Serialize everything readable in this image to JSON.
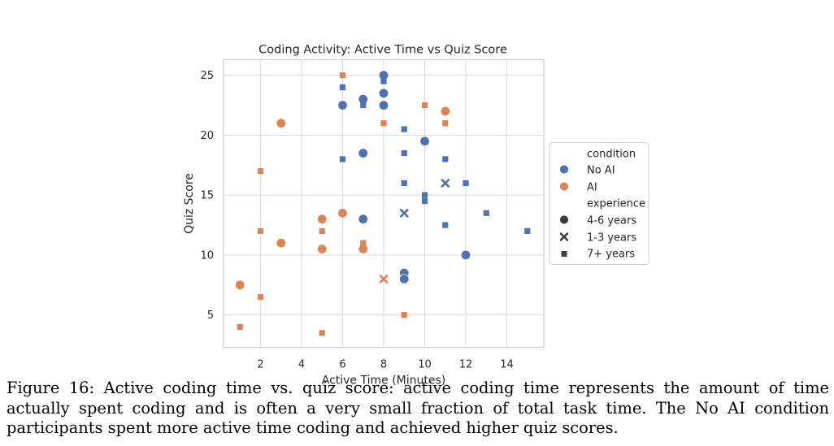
{
  "caption": "Figure 16: Active coding time vs. quiz score: active coding time represents the amount of time actually spent coding and is often a very small fraction of total task time. The No AI condition participants spent more active time coding and achieved higher quiz scores.",
  "chart_data": {
    "type": "scatter",
    "title": "Coding Activity: Active Time vs Quiz Score",
    "xlabel": "Active Time (Minutes)",
    "ylabel": "Quiz Score",
    "xlim": [
      0.2,
      15.8
    ],
    "ylim": [
      2.3,
      26.3
    ],
    "xticks": [
      2,
      4,
      6,
      8,
      10,
      12,
      14
    ],
    "yticks": [
      5,
      10,
      15,
      20,
      25
    ],
    "grid": true,
    "colors": {
      "No AI": "#4c72b0",
      "AI": "#dd8452"
    },
    "legend": {
      "placement": "outside right",
      "hue_title": "condition",
      "hue_entries": [
        "No AI",
        "AI"
      ],
      "style_title": "experience",
      "style_entries": [
        "4-6 years",
        "1-3 years",
        "7+ years"
      ]
    },
    "points": [
      {
        "x": 8,
        "y": 25,
        "condition": "No AI",
        "experience": "4-6 years"
      },
      {
        "x": 7,
        "y": 23,
        "condition": "No AI",
        "experience": "4-6 years"
      },
      {
        "x": 8,
        "y": 23.5,
        "condition": "No AI",
        "experience": "4-6 years"
      },
      {
        "x": 6,
        "y": 22.5,
        "condition": "No AI",
        "experience": "4-6 years"
      },
      {
        "x": 8,
        "y": 22.5,
        "condition": "No AI",
        "experience": "4-6 years"
      },
      {
        "x": 7,
        "y": 18.5,
        "condition": "No AI",
        "experience": "4-6 years"
      },
      {
        "x": 10,
        "y": 19.5,
        "condition": "No AI",
        "experience": "4-6 years"
      },
      {
        "x": 7,
        "y": 13,
        "condition": "No AI",
        "experience": "4-6 years"
      },
      {
        "x": 12,
        "y": 10,
        "condition": "No AI",
        "experience": "4-6 years"
      },
      {
        "x": 9,
        "y": 8.5,
        "condition": "No AI",
        "experience": "4-6 years"
      },
      {
        "x": 9,
        "y": 8,
        "condition": "No AI",
        "experience": "4-6 years"
      },
      {
        "x": 11,
        "y": 16,
        "condition": "No AI",
        "experience": "1-3 years"
      },
      {
        "x": 9,
        "y": 13.5,
        "condition": "No AI",
        "experience": "1-3 years"
      },
      {
        "x": 8,
        "y": 24.5,
        "condition": "No AI",
        "experience": "7+ years"
      },
      {
        "x": 6,
        "y": 24,
        "condition": "No AI",
        "experience": "7+ years"
      },
      {
        "x": 7,
        "y": 22.5,
        "condition": "No AI",
        "experience": "7+ years"
      },
      {
        "x": 9,
        "y": 20.5,
        "condition": "No AI",
        "experience": "7+ years"
      },
      {
        "x": 9,
        "y": 18.5,
        "condition": "No AI",
        "experience": "7+ years"
      },
      {
        "x": 6,
        "y": 18,
        "condition": "No AI",
        "experience": "7+ years"
      },
      {
        "x": 11,
        "y": 18,
        "condition": "No AI",
        "experience": "7+ years"
      },
      {
        "x": 9,
        "y": 16,
        "condition": "No AI",
        "experience": "7+ years"
      },
      {
        "x": 12,
        "y": 16,
        "condition": "No AI",
        "experience": "7+ years"
      },
      {
        "x": 10,
        "y": 15,
        "condition": "No AI",
        "experience": "7+ years"
      },
      {
        "x": 10,
        "y": 14.5,
        "condition": "No AI",
        "experience": "7+ years"
      },
      {
        "x": 13,
        "y": 13.5,
        "condition": "No AI",
        "experience": "7+ years"
      },
      {
        "x": 11,
        "y": 12.5,
        "condition": "No AI",
        "experience": "7+ years"
      },
      {
        "x": 15,
        "y": 12,
        "condition": "No AI",
        "experience": "7+ years"
      },
      {
        "x": 7,
        "y": 13,
        "condition": "No AI",
        "experience": "7+ years"
      },
      {
        "x": 11,
        "y": 22,
        "condition": "AI",
        "experience": "4-6 years"
      },
      {
        "x": 3,
        "y": 21,
        "condition": "AI",
        "experience": "4-6 years"
      },
      {
        "x": 6,
        "y": 13.5,
        "condition": "AI",
        "experience": "4-6 years"
      },
      {
        "x": 5,
        "y": 13,
        "condition": "AI",
        "experience": "4-6 years"
      },
      {
        "x": 3,
        "y": 11,
        "condition": "AI",
        "experience": "4-6 years"
      },
      {
        "x": 5,
        "y": 10.5,
        "condition": "AI",
        "experience": "4-6 years"
      },
      {
        "x": 7,
        "y": 10.5,
        "condition": "AI",
        "experience": "4-6 years"
      },
      {
        "x": 1,
        "y": 7.5,
        "condition": "AI",
        "experience": "4-6 years"
      },
      {
        "x": 8,
        "y": 8,
        "condition": "AI",
        "experience": "1-3 years"
      },
      {
        "x": 6,
        "y": 25,
        "condition": "AI",
        "experience": "7+ years"
      },
      {
        "x": 10,
        "y": 22.5,
        "condition": "AI",
        "experience": "7+ years"
      },
      {
        "x": 8,
        "y": 21,
        "condition": "AI",
        "experience": "7+ years"
      },
      {
        "x": 11,
        "y": 21,
        "condition": "AI",
        "experience": "7+ years"
      },
      {
        "x": 2,
        "y": 17,
        "condition": "AI",
        "experience": "7+ years"
      },
      {
        "x": 2,
        "y": 12,
        "condition": "AI",
        "experience": "7+ years"
      },
      {
        "x": 5,
        "y": 12,
        "condition": "AI",
        "experience": "7+ years"
      },
      {
        "x": 7,
        "y": 11,
        "condition": "AI",
        "experience": "7+ years"
      },
      {
        "x": 2,
        "y": 6.5,
        "condition": "AI",
        "experience": "7+ years"
      },
      {
        "x": 1,
        "y": 4,
        "condition": "AI",
        "experience": "7+ years"
      },
      {
        "x": 5,
        "y": 3.5,
        "condition": "AI",
        "experience": "7+ years"
      },
      {
        "x": 9,
        "y": 5,
        "condition": "AI",
        "experience": "7+ years"
      }
    ]
  }
}
